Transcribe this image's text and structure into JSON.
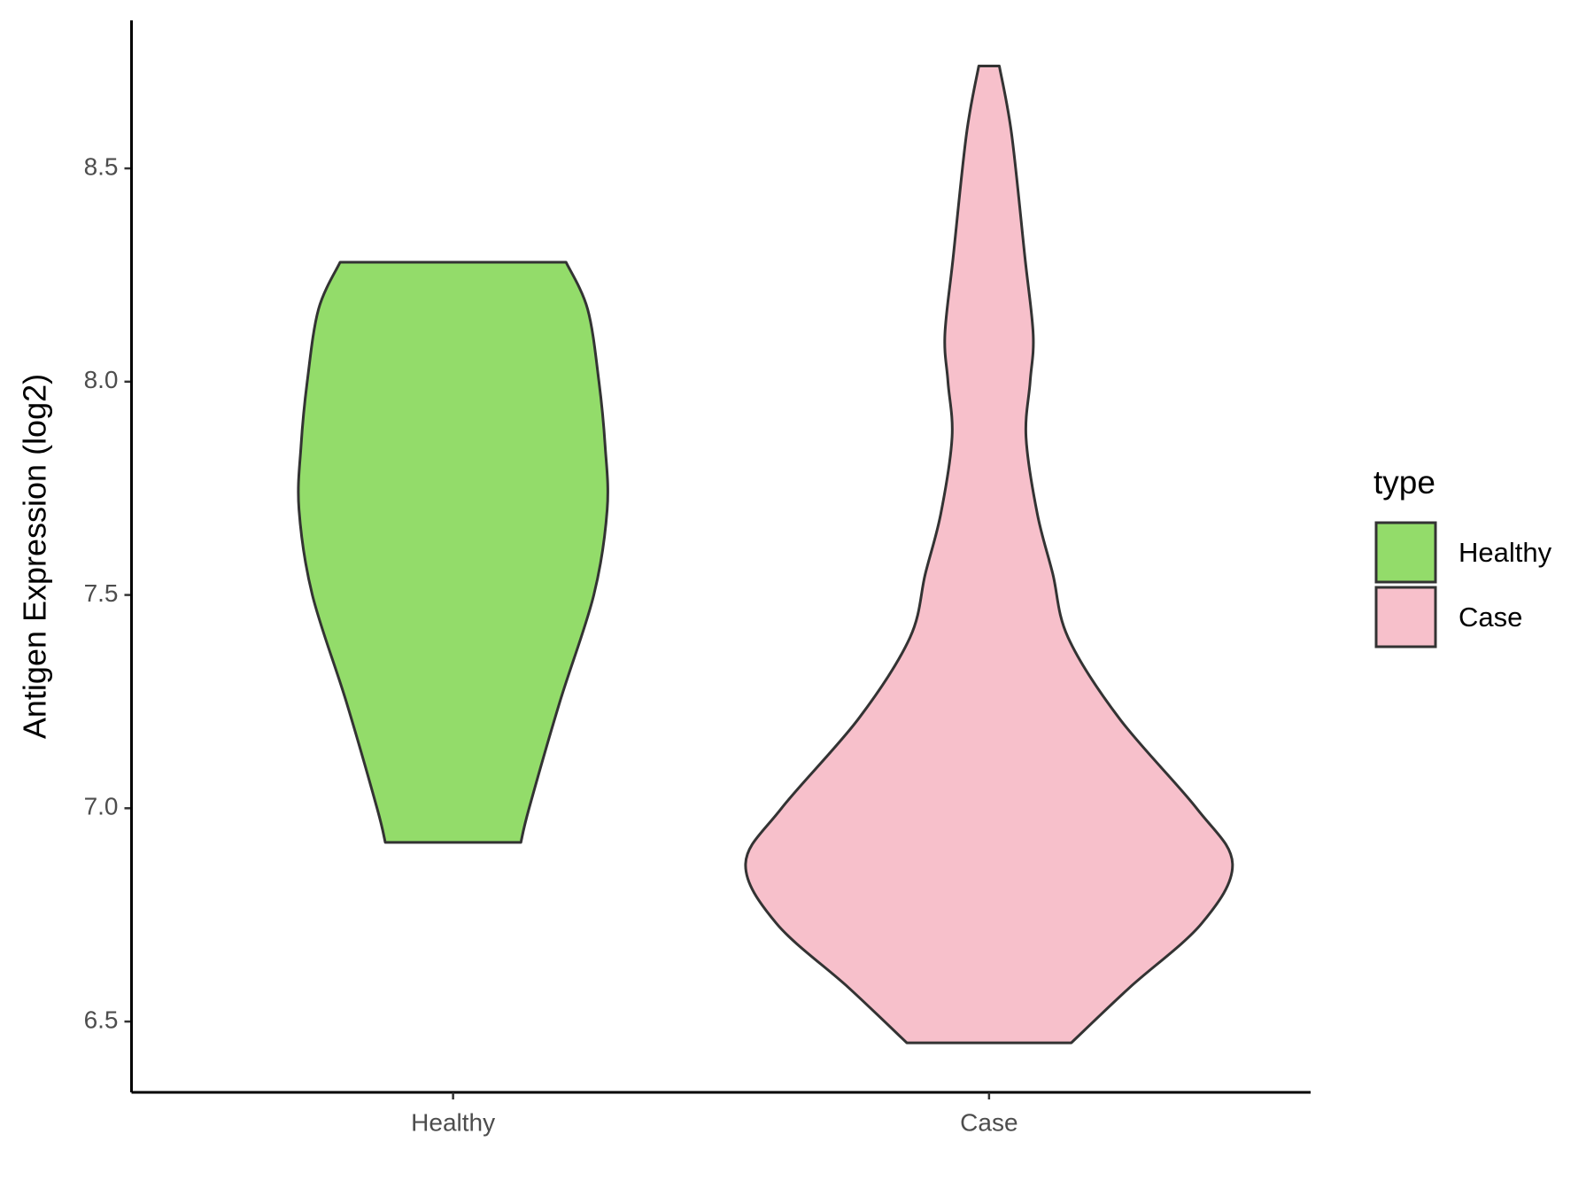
{
  "chart_data": {
    "type": "violin",
    "y_label": "Antigen Expression (log2)",
    "categories": [
      "Healthy",
      "Case"
    ],
    "ylim": [
      6.334,
      8.847
    ],
    "yticks": [
      6.5,
      {
        "value": 7.0,
        "label": "7.0"
      },
      7.5,
      {
        "value": 8.0,
        "label": "8.0"
      },
      8.5
    ],
    "legend_title": "type",
    "legend": "right",
    "series": [
      {
        "name": "Healthy",
        "color": "#93dc6a",
        "y": [
          8.28,
          8.17,
          8.0,
          7.85,
          7.7,
          7.5,
          7.25,
          7.0,
          6.92
        ],
        "density": [
          1.1,
          1.31,
          1.42,
          1.48,
          1.5,
          1.37,
          1.04,
          0.74,
          0.66
        ]
      },
      {
        "name": "Case",
        "color": "#f7c0cb",
        "y": [
          8.74,
          8.58,
          8.29,
          8.11,
          8.0,
          7.87,
          7.69,
          7.55,
          7.4,
          7.21,
          7.0,
          6.87,
          6.73,
          6.58,
          6.45
        ],
        "density": [
          0.1,
          0.22,
          0.35,
          0.43,
          0.4,
          0.36,
          0.47,
          0.62,
          0.77,
          1.27,
          2.02,
          2.37,
          2.07,
          1.37,
          0.8
        ]
      }
    ]
  }
}
